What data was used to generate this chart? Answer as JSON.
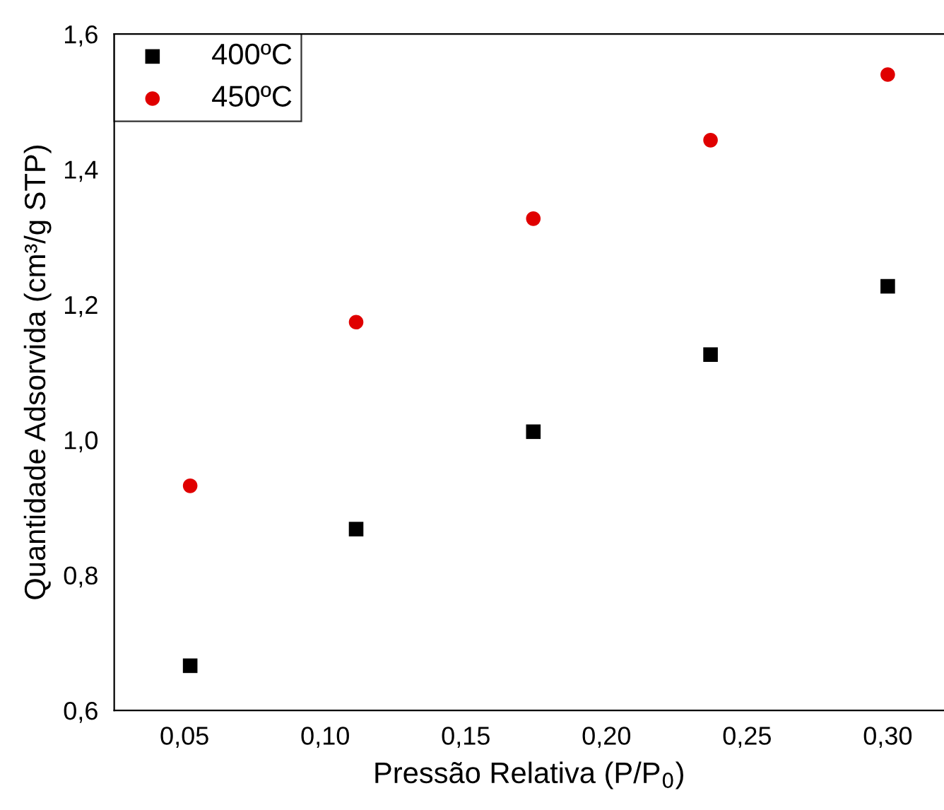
{
  "chart_data": {
    "type": "scatter",
    "xlabel": "Pressão Relativa (P/P$_{0}$)",
    "ylabel": "Quantidade Adsorvida (cm³/g STP)",
    "series": [
      {
        "name": "400ºC",
        "color": "#000000",
        "marker": "square",
        "x": [
          0.052,
          0.111,
          0.174,
          0.237,
          0.3
        ],
        "values": [
          0.666,
          0.868,
          1.012,
          1.126,
          1.227
        ]
      },
      {
        "name": "450ºC",
        "color": "#e00000",
        "marker": "circle",
        "x": [
          0.052,
          0.111,
          0.174,
          0.237,
          0.3
        ],
        "values": [
          0.932,
          1.174,
          1.327,
          1.443,
          1.54
        ]
      }
    ],
    "xlim": [
      0.025,
      0.32
    ],
    "ylim": [
      0.6,
      1.6
    ],
    "xticks": [
      {
        "value": 0.05,
        "label": "0,05"
      },
      {
        "value": 0.1,
        "label": "0,10"
      },
      {
        "value": 0.15,
        "label": "0,15"
      },
      {
        "value": 0.2,
        "label": "0,20"
      },
      {
        "value": 0.25,
        "label": "0,25"
      },
      {
        "value": 0.3,
        "label": "0,30"
      }
    ],
    "yticks": [
      {
        "value": 0.6,
        "label": "0,6"
      },
      {
        "value": 0.8,
        "label": "0,8"
      },
      {
        "value": 1.0,
        "label": "1,0"
      },
      {
        "value": 1.2,
        "label": "1,2"
      },
      {
        "value": 1.4,
        "label": "1,4"
      },
      {
        "value": 1.6,
        "label": "1,6"
      }
    ],
    "grid": false,
    "legend": "top left"
  }
}
